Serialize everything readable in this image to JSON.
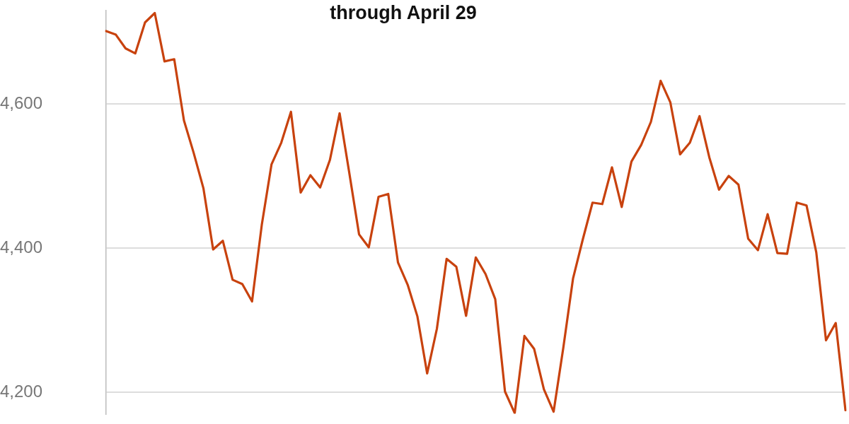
{
  "chart_data": {
    "type": "line",
    "title": "through April 29",
    "categories": [
      null,
      null,
      null,
      null,
      null,
      null,
      null,
      null,
      null,
      null,
      null,
      null,
      null,
      null,
      null,
      null,
      null,
      null,
      null,
      null,
      null,
      null,
      null,
      null,
      null,
      null,
      null,
      null,
      null,
      null,
      null,
      null,
      null,
      null,
      null,
      null,
      null,
      null,
      null,
      null,
      null,
      null,
      null,
      null,
      null,
      null,
      null,
      null,
      null,
      null,
      null,
      null,
      null,
      null,
      null,
      null,
      null,
      null,
      null,
      null,
      null,
      null,
      null,
      null,
      null,
      null,
      null,
      null,
      null,
      null,
      null,
      null,
      null,
      null,
      null,
      null,
      null
    ],
    "series": [
      {
        "color": "#c8420e",
        "values": [
          4701,
          4696,
          4677,
          4670,
          4713,
          4726,
          4659,
          4662,
          4577,
          4532,
          4483,
          4398,
          4410,
          4356,
          4350,
          4326,
          4432,
          4516,
          4546,
          4589,
          4477,
          4501,
          4484,
          4522,
          4587,
          4504,
          4419,
          4401,
          4471,
          4475,
          4380,
          4349,
          4305,
          4226,
          4288,
          4385,
          4374,
          4306,
          4387,
          4364,
          4329,
          4201,
          4171,
          4278,
          4260,
          4204,
          4173,
          4262,
          4358,
          4412,
          4463,
          4461,
          4512,
          4457,
          4520,
          4543,
          4575,
          4632,
          4602,
          4530,
          4546,
          4583,
          4526,
          4481,
          4500,
          4488,
          4413,
          4397,
          4447,
          4393,
          4392,
          4463,
          4459,
          4394,
          4272,
          4296,
          4175
        ]
      }
    ],
    "ylim": [
      4170,
      4730
    ],
    "yticks": [
      {
        "value": 4200,
        "label": "4,200"
      },
      {
        "value": 4400,
        "label": "4,400"
      },
      {
        "value": 4600,
        "label": "4,600"
      }
    ],
    "grid": "y",
    "tick_labels": "y",
    "legend": false,
    "marker": "none",
    "line_style": "solid"
  }
}
